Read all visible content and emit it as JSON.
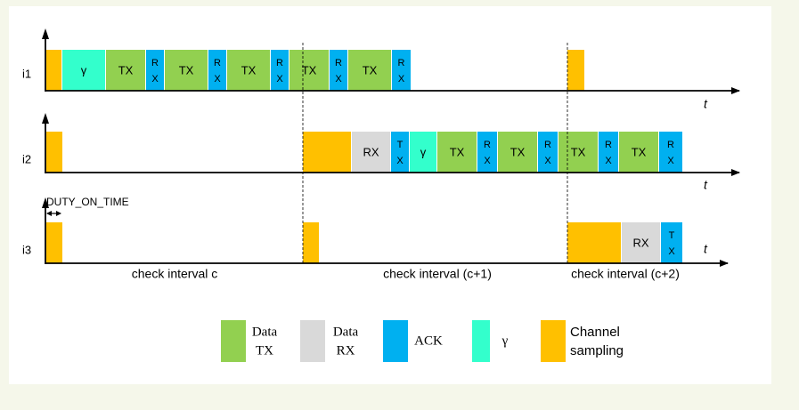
{
  "colors": {
    "data_tx": "#92d050",
    "data_rx": "#d9d9d9",
    "ack": "#00b0f0",
    "gamma": "#33ffcc",
    "channel_sampling": "#ffc000",
    "page_bg": "#f5f7ea"
  },
  "rows": [
    {
      "label": "i1",
      "axis_label": "t"
    },
    {
      "label": "i2",
      "axis_label": "t"
    },
    {
      "label": "i3",
      "axis_label": "t"
    }
  ],
  "block_labels": {
    "tx": "TX",
    "rx": "RX",
    "ack_rx": [
      "R",
      "X"
    ],
    "ack_tx": [
      "T",
      "X"
    ],
    "gamma": "γ"
  },
  "duty_on_time": "DUTY_ON_TIME",
  "intervals": [
    "check interval c",
    "check interval (c+1)",
    "check interval (c+2)"
  ],
  "legend": [
    {
      "key": "data_tx",
      "lines": [
        "Data",
        "TX"
      ],
      "serif": true
    },
    {
      "key": "data_rx",
      "lines": [
        "Data",
        "RX"
      ],
      "serif": true
    },
    {
      "key": "ack",
      "lines": [
        "ACK"
      ],
      "serif": true
    },
    {
      "key": "gamma",
      "lines": [
        "γ"
      ],
      "serif": true
    },
    {
      "key": "channel_sampling",
      "lines": [
        "Channel",
        "sampling"
      ],
      "serif": false
    }
  ]
}
